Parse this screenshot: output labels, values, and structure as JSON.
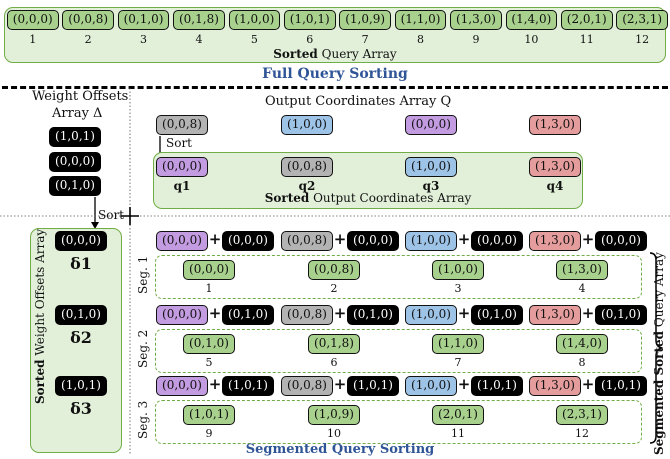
{
  "full_sorting": {
    "entries": [
      "(0,0,0)",
      "(0,0,8)",
      "(0,1,0)",
      "(0,1,8)",
      "(1,0,0)",
      "(1,0,1)",
      "(1,0,9)",
      "(1,1,0)",
      "(1,3,0)",
      "(1,4,0)",
      "(2,0,1)",
      "(2,3,1)"
    ],
    "indices": [
      "1",
      "2",
      "3",
      "4",
      "5",
      "6",
      "7",
      "8",
      "9",
      "10",
      "11",
      "12"
    ],
    "caption_bold": "Sorted",
    "caption_rest": " Query Array",
    "title": "Full Query Sorting"
  },
  "weights": {
    "title_line1": "Weight Offsets",
    "title_line2": "Array Δ",
    "unsorted": [
      "(1,0,1)",
      "(0,0,0)",
      "(0,1,0)"
    ],
    "sort_label": "Sort",
    "sorted": [
      "(0,0,0)",
      "(0,1,0)",
      "(1,0,1)"
    ],
    "deltas": [
      "δ1",
      "δ2",
      "δ3"
    ],
    "sorted_caption_bold": "Sorted",
    "sorted_caption_rest": " Weight Offsets Array"
  },
  "output": {
    "title": "Output Coordinates Array Q",
    "unsorted": [
      "(0,0,8)",
      "(1,0,0)",
      "(0,0,0)",
      "(1,3,0)"
    ],
    "sort_label": "Sort",
    "sorted": [
      "(0,0,0)",
      "(0,0,8)",
      "(1,0,0)",
      "(1,3,0)"
    ],
    "q_labels": [
      "q1",
      "q2",
      "q3",
      "q4"
    ],
    "caption_bold": "Sorted",
    "caption_rest": " Output Coordinates Array"
  },
  "segments": [
    {
      "label": "Seg. 1",
      "offset": "(0,0,0)",
      "results": [
        "(0,0,0)",
        "(0,0,8)",
        "(1,0,0)",
        "(1,3,0)"
      ],
      "indices": [
        "1",
        "2",
        "3",
        "4"
      ]
    },
    {
      "label": "Seg. 2",
      "offset": "(0,1,0)",
      "results": [
        "(0,1,0)",
        "(0,1,8)",
        "(1,1,0)",
        "(1,4,0)"
      ],
      "indices": [
        "5",
        "6",
        "7",
        "8"
      ]
    },
    {
      "label": "Seg. 3",
      "offset": "(1,0,1)",
      "results": [
        "(1,0,1)",
        "(1,0,9)",
        "(2,0,1)",
        "(2,3,1)"
      ],
      "indices": [
        "9",
        "10",
        "11",
        "12"
      ]
    }
  ],
  "segmented": {
    "title": "Segmented Query Sorting",
    "side_bold": "Segmented Sorted",
    "side_rest": " Query Array",
    "plus": "+"
  }
}
